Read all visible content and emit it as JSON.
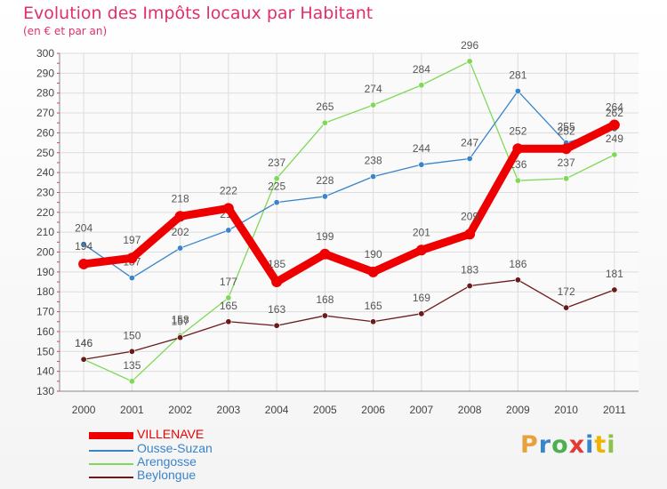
{
  "header": {
    "title": "Evolution des Impôts locaux par Habitant",
    "subtitle": "(en € et par an)"
  },
  "logo": {
    "text": "Proxiti",
    "colors": [
      "#e6a23c",
      "#3a84c9",
      "#4caf50",
      "#e53935",
      "#3a84c9",
      "#f0b400",
      "#8bc34a"
    ]
  },
  "chart_data": {
    "type": "line",
    "title": "Evolution des Impôts locaux par Habitant",
    "subtitle": "(en € et par an)",
    "x": [
      "2000",
      "2001",
      "2002",
      "2003",
      "2004",
      "2005",
      "2006",
      "2007",
      "2008",
      "2009",
      "2010",
      "2011"
    ],
    "ylim": [
      130,
      300
    ],
    "yticks": [
      130,
      140,
      150,
      160,
      170,
      180,
      190,
      200,
      210,
      220,
      230,
      240,
      250,
      260,
      270,
      280,
      290,
      300
    ],
    "grid": true,
    "legend_position": "bottom-left",
    "series": [
      {
        "name": "VILLENAVE",
        "color": "#ee0000",
        "values": [
          194,
          197,
          218,
          222,
          185,
          199,
          190,
          201,
          209,
          252,
          252,
          264
        ]
      },
      {
        "name": "Ousse-Suzan",
        "color": "#3a84c9",
        "values": [
          204,
          187,
          202,
          211,
          225,
          228,
          238,
          244,
          247,
          281,
          255,
          262
        ]
      },
      {
        "name": "Arengosse",
        "color": "#7ed957",
        "values": [
          146,
          135,
          158,
          177,
          237,
          265,
          274,
          284,
          296,
          236,
          237,
          249
        ]
      },
      {
        "name": "Beylongue",
        "color": "#6b1a1a",
        "values": [
          146,
          150,
          157,
          165,
          163,
          168,
          165,
          169,
          183,
          186,
          172,
          181
        ]
      }
    ]
  }
}
